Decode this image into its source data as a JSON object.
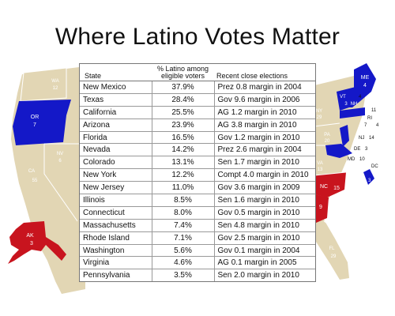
{
  "title": "Where Latino Votes Matter",
  "colors": {
    "dem": "#1418c8",
    "rep": "#c8141e",
    "neutral": "#e2d6b4",
    "label_light": "#ffffff"
  },
  "map_labels": {
    "wa": "WA",
    "wa_ev": "12",
    "or": "OR",
    "or_ev": "7",
    "nv": "NV",
    "nv_ev": "6",
    "ca": "CA",
    "ca_ev": "55",
    "ak": "AK",
    "ak_ev": "3",
    "me": "ME",
    "me_ev": "4",
    "vt": "VT",
    "vt_ev": "3",
    "nh": "NH",
    "nh_ev": "4",
    "ny": "NY",
    "ny_ev": "29",
    "ri": "RI",
    "ri_ev": "4",
    "ct": "7",
    "ma_ev": "11",
    "nj": "NJ",
    "nj_ev": "14",
    "pa": "PA",
    "pa_ev": "20",
    "de": "DE",
    "de_ev": "3",
    "md": "MD",
    "md_ev": "10",
    "dc": "DC",
    "dc_ev": "3",
    "va": "VA",
    "va_ev": "13",
    "nc": "NC",
    "nc_ev": "15",
    "sc_ev": "9",
    "fl": "FL",
    "fl_ev": "29"
  },
  "chart_data": {
    "type": "table",
    "columns": [
      "State",
      "% Latino among eligible voters",
      "Recent close elections"
    ],
    "rows": [
      [
        "New Mexico",
        "37.9%",
        "Prez 0.8 margin in 2004"
      ],
      [
        "Texas",
        "28.4%",
        "Gov 9.6 margin in 2006"
      ],
      [
        "California",
        "25.5%",
        "AG 1.2 margin in 2010"
      ],
      [
        "Arizona",
        "23.9%",
        "AG 3.8 margin in 2010"
      ],
      [
        "Florida",
        "16.5%",
        "Gov 1.2 margin in 2010"
      ],
      [
        "Nevada",
        "14.2%",
        "Prez 2.6 margin in 2004"
      ],
      [
        "Colorado",
        "13.1%",
        "Sen 1.7 margin in 2010"
      ],
      [
        "New York",
        "12.2%",
        "Compt 4.0 margin in 2010"
      ],
      [
        "New Jersey",
        "11.0%",
        "Gov 3.6 margin in 2009"
      ],
      [
        "Illinois",
        "8.5%",
        "Sen 1.6 margin in 2010"
      ],
      [
        "Connecticut",
        "8.0%",
        "Gov 0.5 margin in 2010"
      ],
      [
        "Massachusetts",
        "7.4%",
        "Sen 4.8 margin in 2010"
      ],
      [
        "Rhode Island",
        "7.1%",
        "Gov 2.5 margin in 2010"
      ],
      [
        "Washington",
        "5.6%",
        "Gov 0.1 margin in 2004"
      ],
      [
        "Virginia",
        "4.6%",
        "AG 0.1 margin in 2005"
      ],
      [
        "Pennsylvania",
        "3.5%",
        "Sen 2.0 margin in 2010"
      ]
    ]
  }
}
